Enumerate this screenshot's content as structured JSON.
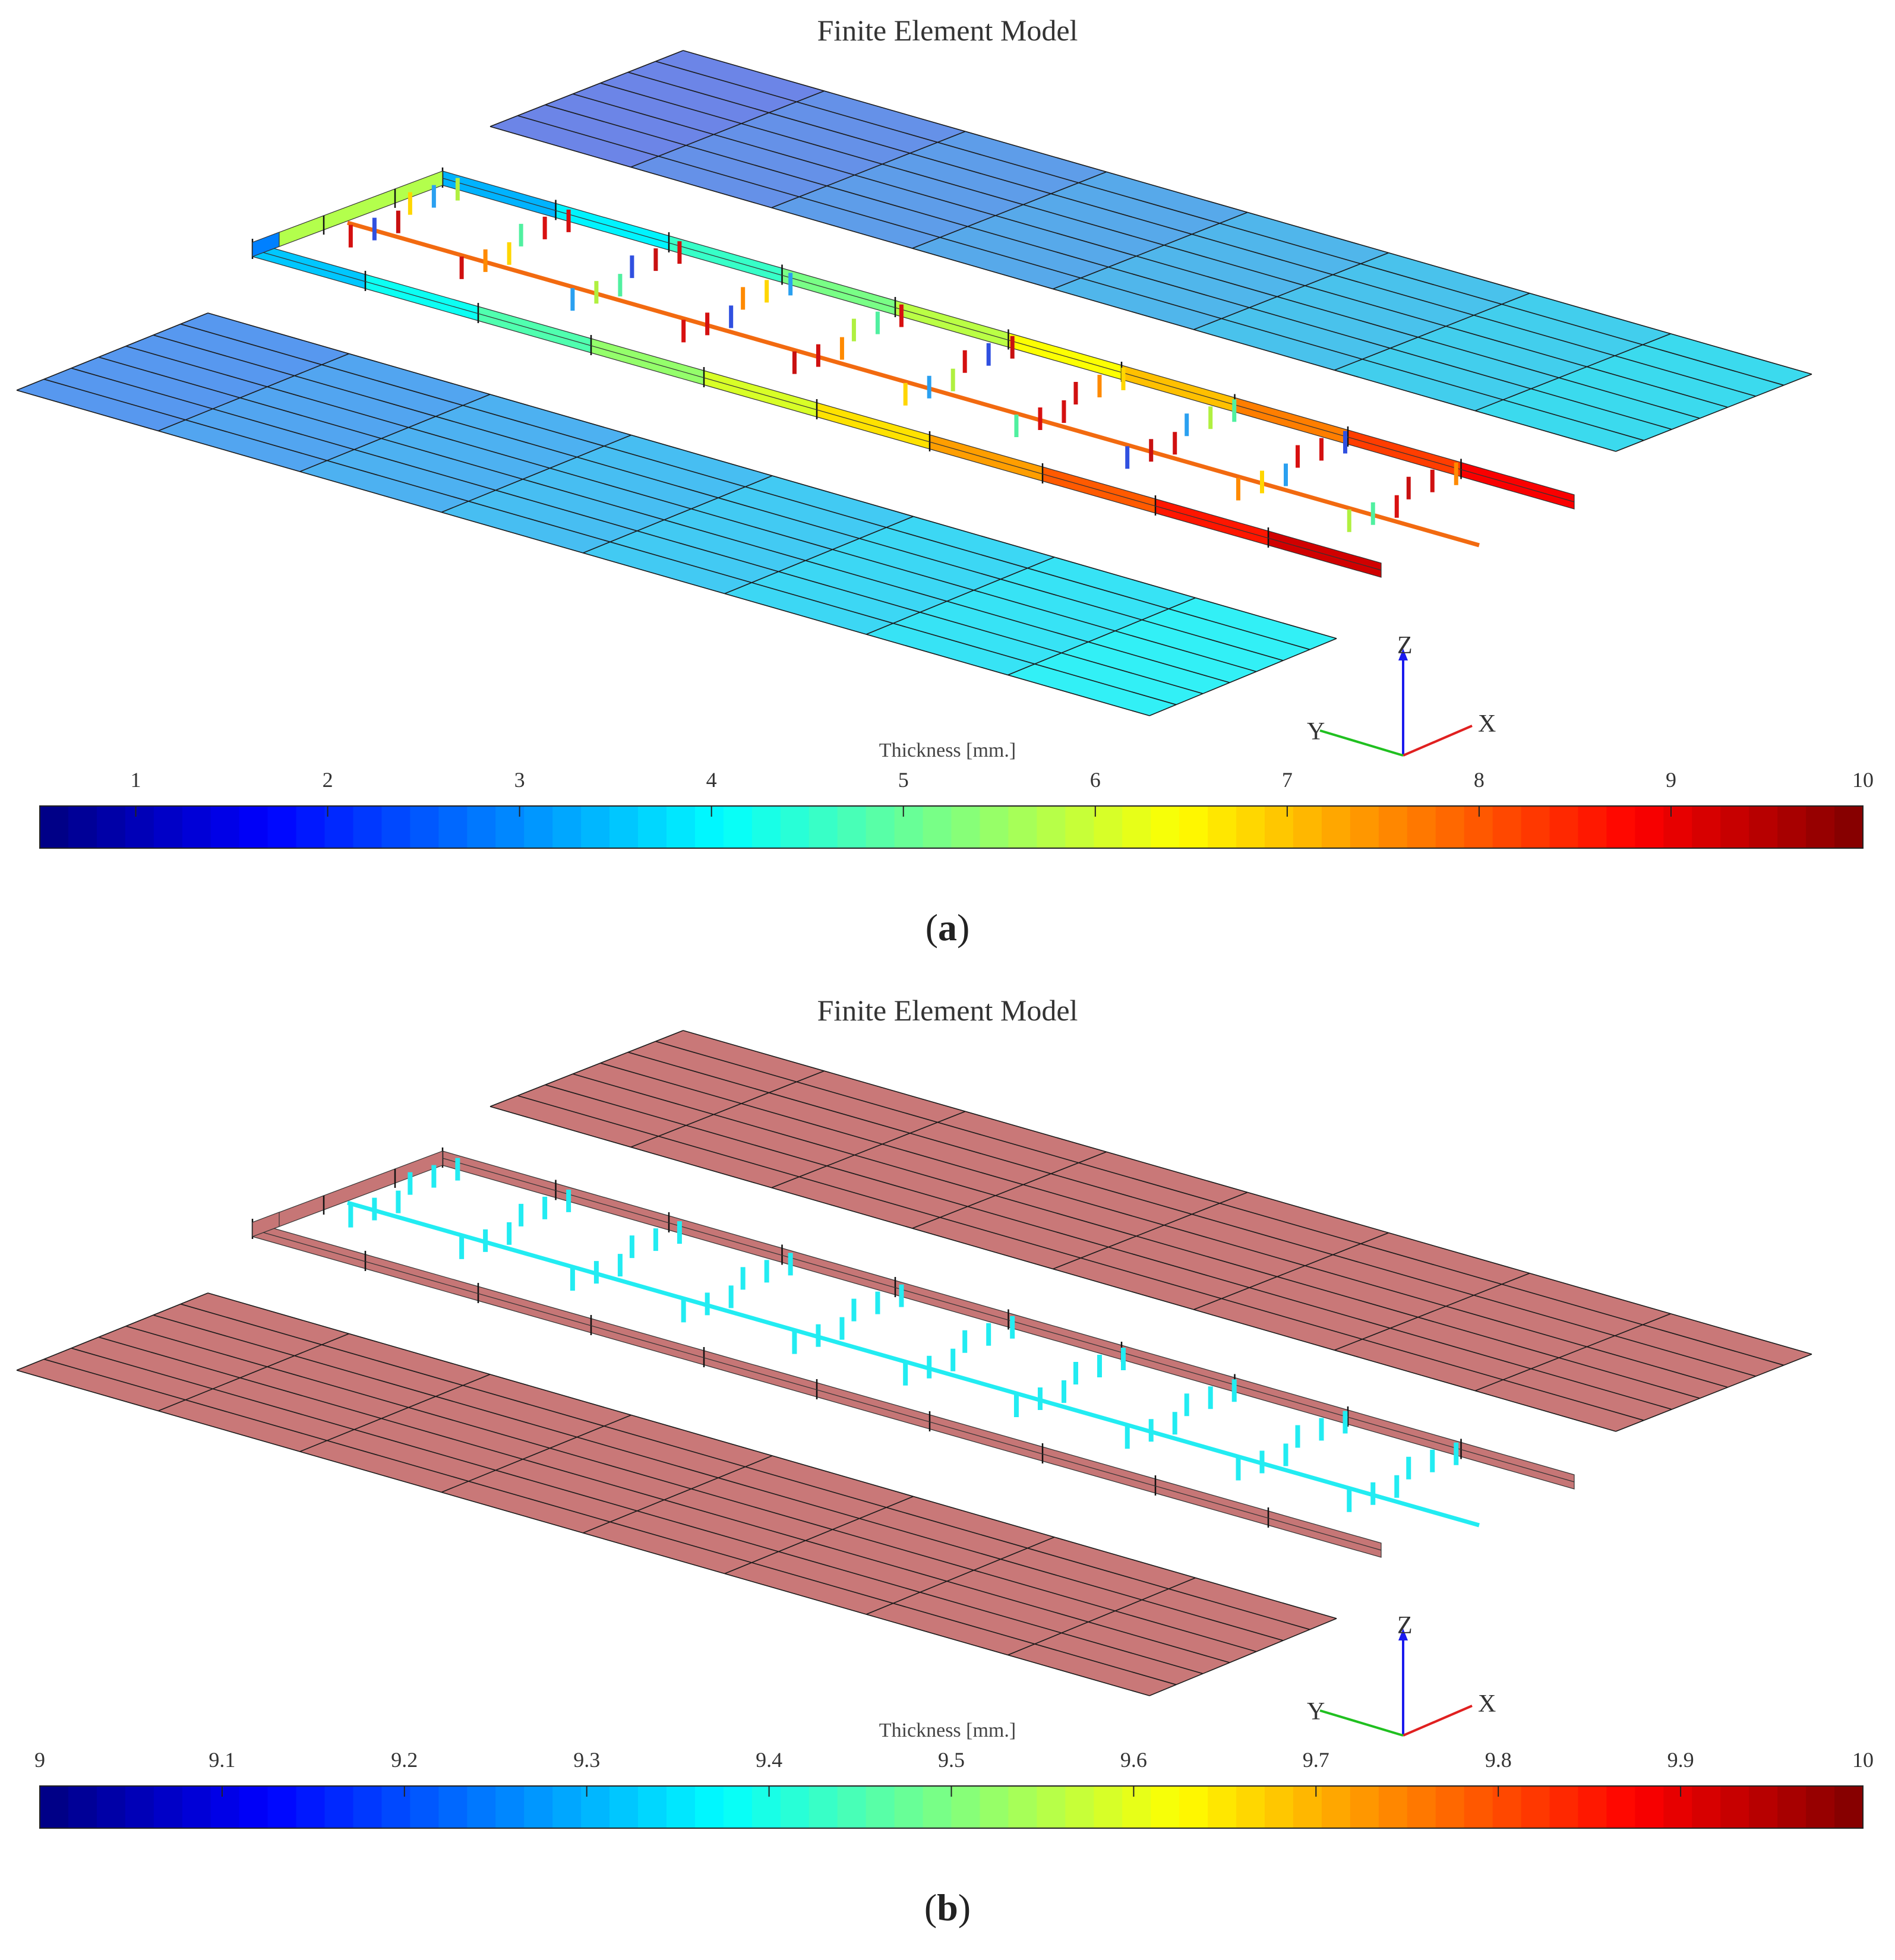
{
  "panels": [
    {
      "id": "a",
      "title": "Finite Element Model",
      "colorbar_label": "Thickness [mm.]",
      "colorbar_ticks": [
        "1",
        "2",
        "3",
        "4",
        "5",
        "6",
        "7",
        "8",
        "9",
        "10"
      ],
      "colorbar_range": [
        0.5,
        10
      ],
      "caption_letter": "a",
      "axes": {
        "z": "Z",
        "y": "Y",
        "x": "X"
      },
      "plate_top_color": "#6f7fe6",
      "plate_top_color_end": "#38e0ee",
      "plate_bottom_color": "#5a92ee",
      "plate_bottom_color_end": "#2ff6f6",
      "spine_color": "#f26a10"
    },
    {
      "id": "b",
      "title": "Finite Element Model",
      "colorbar_label": "Thickness [mm.]",
      "colorbar_ticks": [
        "9",
        "9.1",
        "9.2",
        "9.3",
        "9.4",
        "9.5",
        "9.6",
        "9.7",
        "9.8",
        "9.9",
        "10"
      ],
      "colorbar_range": [
        9,
        10
      ],
      "caption_letter": "b",
      "axes": {
        "z": "Z",
        "y": "Y",
        "x": "X"
      },
      "plate_top_color": "#c97878",
      "plate_top_color_end": "#c97878",
      "plate_bottom_color": "#c97878",
      "plate_bottom_color_end": "#c97878",
      "spine_color": "#22ecf2"
    }
  ],
  "colormap": "jet",
  "colors": {
    "mesh_line": "#1a1a1a",
    "frame_b": "#c67676",
    "stiffener_b": "#22ecf2"
  }
}
